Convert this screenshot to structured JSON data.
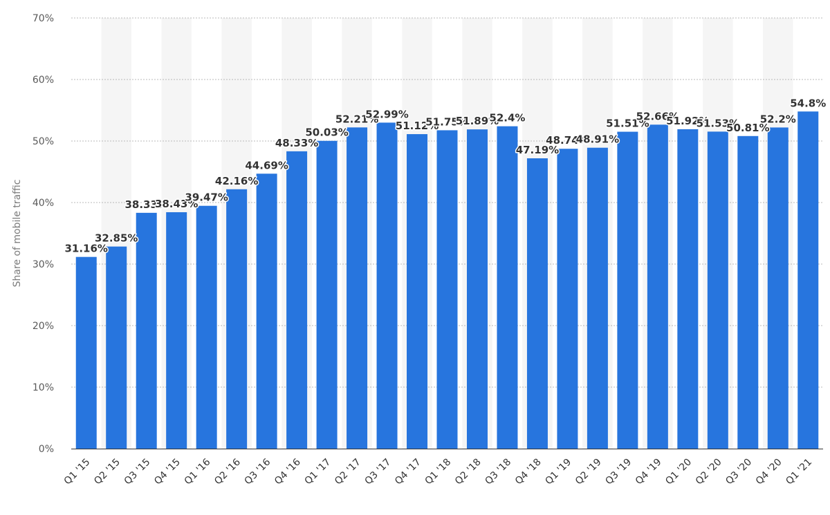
{
  "chart_data": {
    "type": "bar",
    "title": "",
    "xlabel": "",
    "ylabel": "Share of mobile traffic",
    "ylim": [
      0,
      70
    ],
    "yticks": [
      "0%",
      "10%",
      "20%",
      "30%",
      "40%",
      "50%",
      "60%",
      "70%"
    ],
    "grid": true,
    "bar_color": "#2775de",
    "band_color": "#f5f5f5",
    "categories": [
      "Q1 '15",
      "Q2 '15",
      "Q3 '15",
      "Q4 '15",
      "Q1 '16",
      "Q2 '16",
      "Q3 '16",
      "Q4 '16",
      "Q1 '17",
      "Q2 '17",
      "Q3 '17",
      "Q4 '17",
      "Q1 '18",
      "Q2 '18",
      "Q3 '18",
      "Q4 '18",
      "Q1 '19",
      "Q2 '19",
      "Q3 '19",
      "Q4 '19",
      "Q1 '20",
      "Q2 '20",
      "Q3 '20",
      "Q4 '20",
      "Q1 '21"
    ],
    "values": [
      31.16,
      32.85,
      38.33,
      38.43,
      39.47,
      42.16,
      44.69,
      48.33,
      50.03,
      52.21,
      52.99,
      51.12,
      51.75,
      51.89,
      52.4,
      47.19,
      48.74,
      48.91,
      51.51,
      52.66,
      51.92,
      51.53,
      50.81,
      52.2,
      54.8
    ],
    "data_labels": [
      "31.16%",
      "32.85%",
      "38.33%",
      "38.43%",
      "39.47%",
      "42.16%",
      "44.69%",
      "48.33%",
      "50.03%",
      "52.21%",
      "52.99%",
      "51.12%",
      "51.75%",
      "51.89%",
      "52.4%",
      "47.19%",
      "48.74%",
      "48.91%",
      "51.51%",
      "52.66%",
      "51.92%",
      "51.53%",
      "50.81%",
      "52.2%",
      "54.8%"
    ]
  }
}
